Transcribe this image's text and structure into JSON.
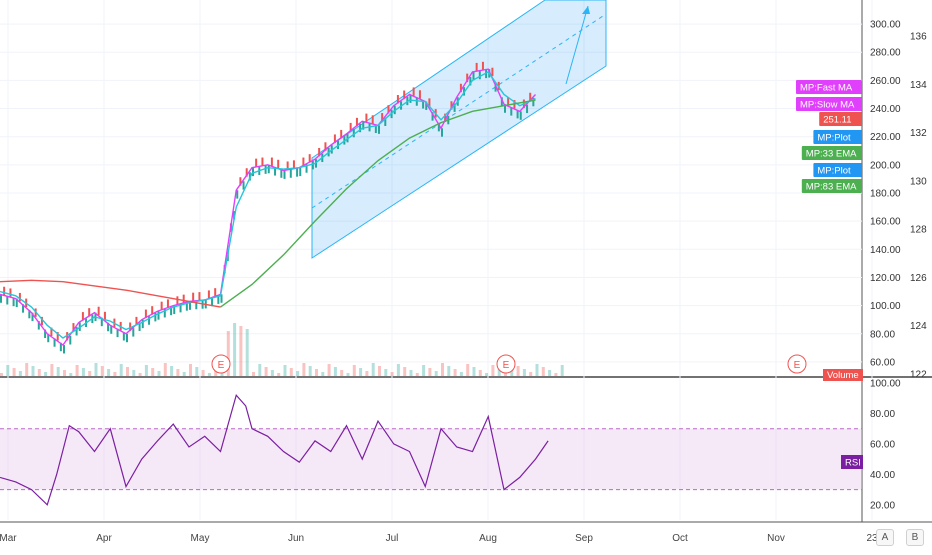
{
  "chart_data": [
    {
      "type": "line",
      "title": "",
      "x_months": [
        "Mar",
        "Apr",
        "May",
        "Jun",
        "Jul",
        "Aug",
        "Sep",
        "Oct",
        "Nov",
        "23"
      ],
      "y_left_ticks": [
        60,
        80,
        100,
        120,
        140,
        160,
        180,
        200,
        220,
        240,
        260,
        280,
        300
      ],
      "y_left_range": [
        50,
        310
      ],
      "y_right_ticks": [
        122,
        124,
        126,
        128,
        130,
        132,
        134,
        136
      ],
      "last_price": "251.11",
      "series": [
        {
          "name": "MP:Fast MA",
          "color": "#e040fb",
          "x": [
            0,
            5,
            10,
            15,
            20,
            25,
            30,
            35,
            40,
            45,
            50,
            55,
            60,
            65,
            70,
            75,
            80,
            85,
            90,
            95,
            100,
            105,
            110,
            115,
            120,
            125,
            130,
            135,
            140,
            145,
            150,
            155,
            160,
            165,
            170
          ],
          "y": [
            108,
            105,
            95,
            80,
            72,
            88,
            95,
            86,
            80,
            90,
            96,
            100,
            103,
            104,
            108,
            182,
            198,
            200,
            196,
            198,
            204,
            214,
            222,
            231,
            228,
            242,
            250,
            245,
            226,
            248,
            266,
            268,
            243,
            238,
            250
          ]
        },
        {
          "name": "MP:Slow MA",
          "color": "#26c6da",
          "x": [
            0,
            5,
            10,
            15,
            20,
            25,
            30,
            35,
            40,
            45,
            50,
            55,
            60,
            65,
            70,
            75,
            80,
            85,
            90,
            95,
            100,
            105,
            110,
            115,
            120,
            125,
            130,
            135,
            140,
            145,
            150,
            155,
            160,
            165,
            170
          ],
          "y": [
            110,
            107,
            99,
            86,
            77,
            84,
            92,
            89,
            83,
            88,
            94,
            99,
            102,
            104,
            107,
            170,
            194,
            198,
            197,
            198,
            201,
            210,
            218,
            226,
            228,
            238,
            246,
            245,
            232,
            244,
            260,
            266,
            250,
            242,
            247
          ]
        },
        {
          "name": "MP:33 EMA",
          "color": "#4caf50",
          "x": [
            70,
            80,
            90,
            100,
            110,
            120,
            130,
            140,
            150,
            160,
            170
          ],
          "y": [
            99,
            115,
            136,
            160,
            183,
            203,
            219,
            230,
            238,
            242,
            246
          ]
        },
        {
          "name": "MP:83 EMA",
          "color": "#ef5350",
          "x": [
            0,
            10,
            20,
            30,
            40,
            50,
            60,
            70
          ],
          "y": [
            117,
            118,
            117,
            114,
            111,
            107,
            103,
            99
          ]
        }
      ],
      "badges": [
        {
          "label": "MP:Fast MA",
          "color": "#e040fb"
        },
        {
          "label": "MP:Slow MA",
          "color": "#e040fb"
        },
        {
          "label": "251.11",
          "color": "#ef5350"
        },
        {
          "label": "MP:Plot",
          "color": "#2196f3"
        },
        {
          "label": "MP:33 EMA",
          "color": "#4caf50"
        },
        {
          "label": "MP:Plot",
          "color": "#2196f3"
        },
        {
          "label": "MP:83 EMA",
          "color": "#4caf50"
        },
        {
          "label": "Volume",
          "color": "#ef5350"
        }
      ],
      "earnings_markers": [
        "E",
        "E",
        "E"
      ],
      "grid": true
    },
    {
      "type": "line",
      "title": "",
      "y_ticks": [
        20,
        40,
        60,
        80,
        100
      ],
      "y_range": [
        10,
        102
      ],
      "band": [
        30,
        70
      ],
      "legend_label": "RSI",
      "color": "#7b1fa2",
      "series": [
        {
          "x": [
            0,
            5,
            10,
            15,
            18,
            22,
            25,
            30,
            35,
            40,
            45,
            50,
            55,
            60,
            65,
            70,
            75,
            78,
            80,
            85,
            90,
            95,
            100,
            105,
            110,
            115,
            120,
            125,
            130,
            135,
            140,
            145,
            150,
            155,
            160,
            165,
            170,
            174
          ],
          "y": [
            38,
            35,
            30,
            20,
            40,
            72,
            68,
            55,
            70,
            32,
            50,
            62,
            73,
            58,
            65,
            55,
            92,
            85,
            70,
            65,
            55,
            48,
            62,
            55,
            72,
            50,
            75,
            60,
            55,
            32,
            70,
            58,
            55,
            78,
            30,
            38,
            50,
            62
          ]
        }
      ]
    }
  ]
}
